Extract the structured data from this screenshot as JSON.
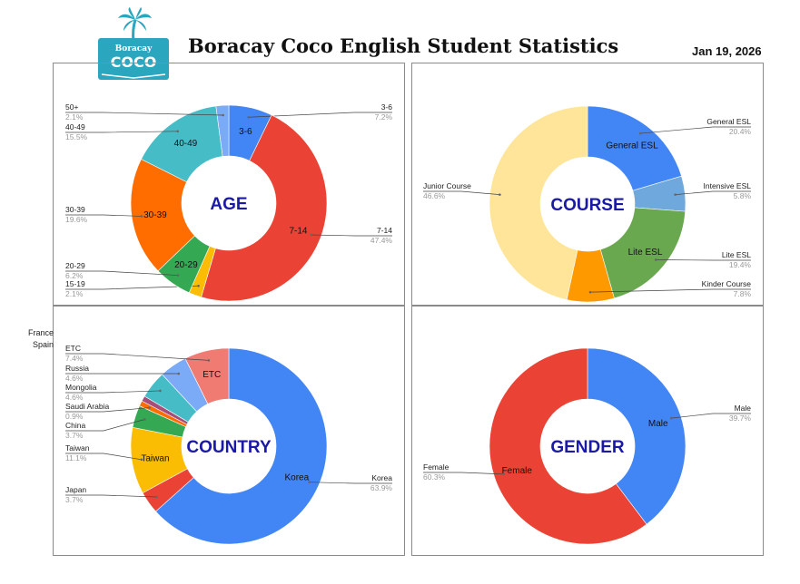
{
  "header": {
    "logo_text_top": "Boracay",
    "logo_text_main": "COCO",
    "title": "Boracay Coco English Student Statistics",
    "date": "Jan 19, 2026"
  },
  "colors": {
    "logo": "#2aa6bf",
    "blue": "#4285f4",
    "red": "#ea4335",
    "yellow": "#fbbc04",
    "green": "#34a853",
    "orange": "#ff6d01",
    "teal": "#46bdc6",
    "light_blue": "#7baaf7",
    "salmon": "#f07b72",
    "peach": "#ffe599",
    "dark_orange": "#ff9900",
    "steel_blue": "#6fa8dc",
    "lite_green": "#6aa84f",
    "center_label": "#1a1aa6"
  },
  "stray_labels": [
    "France",
    "Spain"
  ],
  "chart_data": [
    {
      "type": "pie",
      "title": "AGE",
      "slices": [
        {
          "label": "3-6",
          "pct_label": "7.2%",
          "value": 7.2,
          "color": "#4285f4",
          "inside": "3-6"
        },
        {
          "label": "7-14",
          "pct_label": "47.4%",
          "value": 47.4,
          "color": "#ea4335",
          "inside": "7-14"
        },
        {
          "label": "15-19",
          "pct_label": "2.1%",
          "value": 2.1,
          "color": "#fbbc04",
          "inside": ""
        },
        {
          "label": "20-29",
          "pct_label": "6.2%",
          "value": 6.2,
          "color": "#34a853",
          "inside": "20-29"
        },
        {
          "label": "30-39",
          "pct_label": "19.6%",
          "value": 19.6,
          "color": "#ff6d01",
          "inside": "30-39"
        },
        {
          "label": "40-49",
          "pct_label": "15.5%",
          "value": 15.5,
          "color": "#46bdc6",
          "inside": "40-49"
        },
        {
          "label": "50+",
          "pct_label": "2.1%",
          "value": 2.1,
          "color": "#7baaf7",
          "inside": ""
        }
      ]
    },
    {
      "type": "pie",
      "title": "COURSE",
      "slices": [
        {
          "label": "General ESL",
          "pct_label": "20.4%",
          "value": 20.4,
          "color": "#4285f4",
          "inside": "General ESL"
        },
        {
          "label": "Intensive ESL",
          "pct_label": "5.8%",
          "value": 5.8,
          "color": "#6fa8dc",
          "inside": ""
        },
        {
          "label": "Lite ESL",
          "pct_label": "19.4%",
          "value": 19.4,
          "color": "#6aa84f",
          "inside": "Lite ESL"
        },
        {
          "label": "Kinder Course",
          "pct_label": "7.8%",
          "value": 7.8,
          "color": "#ff9900",
          "inside": ""
        },
        {
          "label": "Junior Course",
          "pct_label": "46.6%",
          "value": 46.6,
          "color": "#ffe599",
          "inside": ""
        }
      ]
    },
    {
      "type": "pie",
      "title": "COUNTRY",
      "slices": [
        {
          "label": "Korea",
          "pct_label": "63.9%",
          "value": 63.9,
          "color": "#4285f4",
          "inside": "Korea"
        },
        {
          "label": "Japan",
          "pct_label": "3.7%",
          "value": 3.7,
          "color": "#ea4335",
          "inside": ""
        },
        {
          "label": "Taiwan",
          "pct_label": "11.1%",
          "value": 11.1,
          "color": "#fbbc04",
          "inside": "Taiwan"
        },
        {
          "label": "China",
          "pct_label": "3.7%",
          "value": 3.7,
          "color": "#34a853",
          "inside": ""
        },
        {
          "label": "Saudi Arabia",
          "pct_label": "0.9%",
          "value": 0.9,
          "color": "#ff6d01",
          "inside": ""
        },
        {
          "label": "",
          "pct_label": "",
          "value": 0.9,
          "color": "#a64d79",
          "inside": ""
        },
        {
          "label": "Mongolia",
          "pct_label": "4.6%",
          "value": 4.6,
          "color": "#46bdc6",
          "inside": ""
        },
        {
          "label": "Russia",
          "pct_label": "4.6%",
          "value": 4.6,
          "color": "#7baaf7",
          "inside": ""
        },
        {
          "label": "ETC",
          "pct_label": "7.4%",
          "value": 7.4,
          "color": "#f07b72",
          "inside": "ETC"
        }
      ]
    },
    {
      "type": "pie",
      "title": "GENDER",
      "slices": [
        {
          "label": "Male",
          "pct_label": "39.7%",
          "value": 39.7,
          "color": "#4285f4",
          "inside": "Male"
        },
        {
          "label": "Female",
          "pct_label": "60.3%",
          "value": 60.3,
          "color": "#ea4335",
          "inside": "Female"
        }
      ]
    }
  ]
}
